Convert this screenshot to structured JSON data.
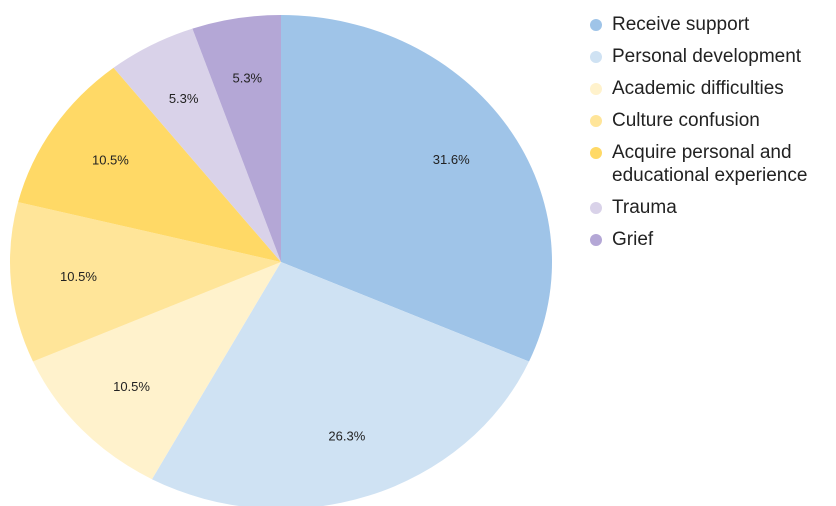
{
  "chart_data": {
    "type": "pie",
    "categories": [
      "Receive support",
      "Personal development",
      "Academic difficulties",
      "Culture confusion",
      "Acquire personal and educational experience",
      "Trauma",
      "Grief"
    ],
    "values": [
      31.6,
      26.3,
      10.5,
      10.5,
      10.5,
      5.3,
      5.3
    ],
    "value_labels": [
      "31.6%",
      "26.3%",
      "10.5%",
      "10.5%",
      "10.5%",
      "5.3%",
      "5.3%"
    ],
    "colors": [
      "#9fc4e8",
      "#cfe2f3",
      "#fff2cc",
      "#ffe599",
      "#ffd966",
      "#d9d2e9",
      "#b4a7d6"
    ],
    "legend": "right"
  }
}
